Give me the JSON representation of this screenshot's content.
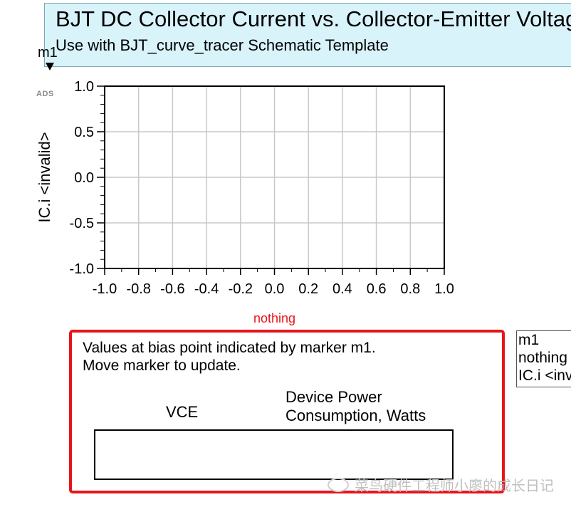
{
  "header": {
    "title": "BJT DC Collector Current vs. Collector-Emitter Voltage",
    "subtitle": "Use with BJT_curve_tracer Schematic Template"
  },
  "marker": {
    "name": "m1",
    "icon": "triangle-down-icon"
  },
  "ads_logo": "ADS",
  "chart_data": {
    "type": "line",
    "ylabel": "IC.i <invalid>",
    "xlabel": "nothing",
    "xlim": [
      -1.0,
      1.0
    ],
    "ylim": [
      -1.0,
      1.0
    ],
    "xticks": [
      "-1.0",
      "-0.8",
      "-0.6",
      "-0.4",
      "-0.2",
      "0.0",
      "0.2",
      "0.4",
      "0.6",
      "0.8",
      "1.0"
    ],
    "yticks": [
      "1.0",
      "0.5",
      "0.0",
      "-0.5",
      "-1.0"
    ],
    "grid": true,
    "series": [],
    "colors": {
      "xlabel": "#e8141c",
      "grid": "#c8c8c8"
    }
  },
  "info_panel": {
    "line1": "Values at bias point indicated by marker m1.",
    "line2": "Move marker to update.",
    "col1_header": "VCE",
    "col2_header_line1": "Device Power",
    "col2_header_line2": "Consumption, Watts",
    "border_color": "#e8141c"
  },
  "readout": {
    "line1": "m1",
    "line2": "nothing",
    "line3": "IC.i <invalid>"
  },
  "watermark": "菜鸟硬件工程师小廖的成长日记"
}
